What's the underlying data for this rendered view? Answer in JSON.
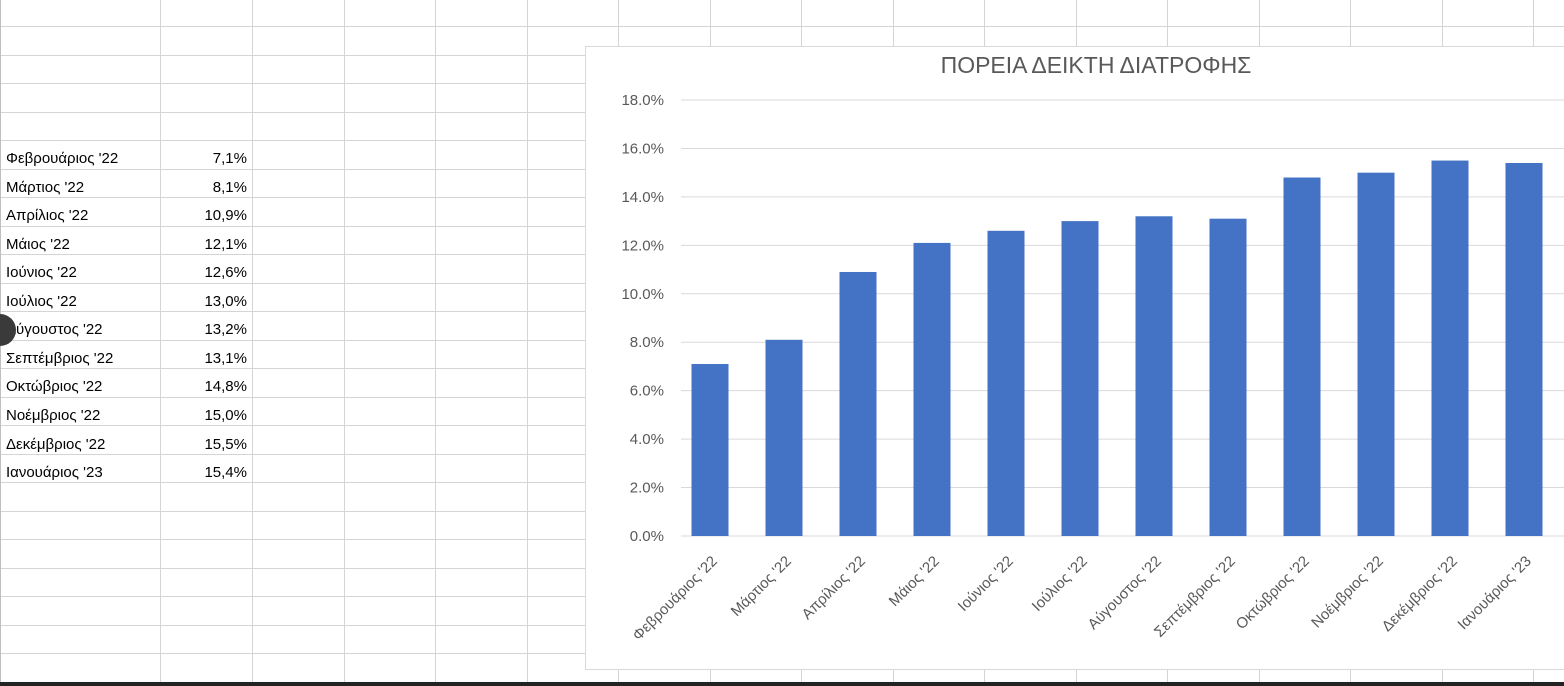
{
  "sheet": {
    "rows": [
      {
        "label": "Φεβρουάριος '22",
        "value": "7,1%"
      },
      {
        "label": "Μάρτιος '22",
        "value": "8,1%"
      },
      {
        "label": "Απρίλιος '22",
        "value": "10,9%"
      },
      {
        "label": "Μάιος '22",
        "value": "12,1%"
      },
      {
        "label": "Ιούνιος '22",
        "value": "12,6%"
      },
      {
        "label": "Ιούλιος '22",
        "value": "13,0%"
      },
      {
        "label": "Αύγουστος '22",
        "value": "13,2%"
      },
      {
        "label": "Σεπτέμβριος '22",
        "value": "13,1%"
      },
      {
        "label": "Οκτώβριος '22",
        "value": "14,8%"
      },
      {
        "label": "Νοέμβριος '22",
        "value": "15,0%"
      },
      {
        "label": "Δεκέμβριος '22",
        "value": "15,5%"
      },
      {
        "label": "Ιανουάριος '23",
        "value": "15,4%"
      }
    ]
  },
  "chart_data": {
    "type": "bar",
    "title": "ΠΟΡΕΙΑ ΔΕΙΚΤΗ ΔΙΑΤΡΟΦΗΣ",
    "xlabel": "",
    "ylabel": "",
    "categories": [
      "Φεβρουάριος '22",
      "Μάρτιος '22",
      "Απρίλιος '22",
      "Μάιος '22",
      "Ιούνιος '22",
      "Ιούλιος '22",
      "Αύγουστος '22",
      "Σεπτέμβριος '22",
      "Οκτώβριος '22",
      "Νοέμβριος '22",
      "Δεκέμβριος '22",
      "Ιανουάριος '23"
    ],
    "values": [
      7.1,
      8.1,
      10.9,
      12.1,
      12.6,
      13.0,
      13.2,
      13.1,
      14.8,
      15.0,
      15.5,
      15.4
    ],
    "ylim": [
      0,
      18
    ],
    "yticks": [
      "0.0%",
      "2.0%",
      "4.0%",
      "6.0%",
      "8.0%",
      "10.0%",
      "12.0%",
      "14.0%",
      "16.0%",
      "18.0%"
    ],
    "grid": true,
    "legend": "none",
    "bar_color": "#4472c4"
  }
}
